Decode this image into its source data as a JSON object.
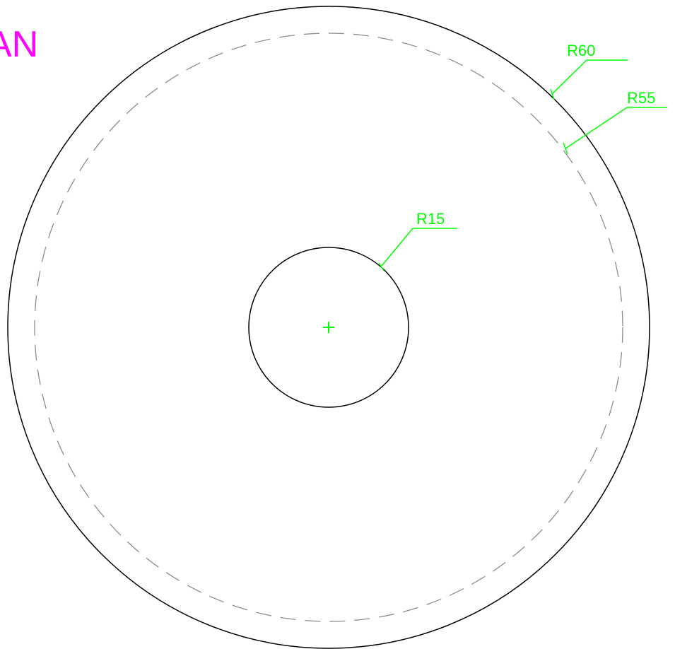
{
  "drawing": {
    "title": "AN",
    "center_mark": "+",
    "circles": [
      {
        "name": "outer-circle",
        "radius": 60,
        "linetype": "continuous"
      },
      {
        "name": "dashed-circle",
        "radius": 55,
        "linetype": "dashed"
      },
      {
        "name": "inner-circle",
        "radius": 15,
        "linetype": "continuous"
      }
    ],
    "dimensions": [
      {
        "name": "dimension-r60",
        "label": "R60"
      },
      {
        "name": "dimension-r55",
        "label": "R55"
      },
      {
        "name": "dimension-r15",
        "label": "R15"
      }
    ],
    "colors": {
      "title": "#ff00ff",
      "dimension": "#00ff00",
      "outline": "#000000",
      "hidden_line": "#8c8c8c",
      "background": "#ffffff"
    }
  }
}
